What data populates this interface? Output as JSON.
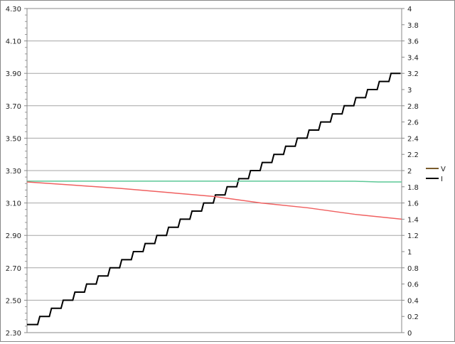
{
  "chart_data": {
    "type": "line",
    "title": "",
    "xlabel": "",
    "ylabel": "",
    "y_left": {
      "range": [
        2.3,
        4.3
      ],
      "ticks": [
        "2.30",
        "2.50",
        "2.70",
        "2.90",
        "3.10",
        "3.30",
        "3.50",
        "3.70",
        "3.90",
        "4.10",
        "4.30"
      ]
    },
    "y_right": {
      "range": [
        0,
        4
      ],
      "ticks": [
        "0",
        "0.2",
        "0.4",
        "0.6",
        "0.8",
        "1",
        "1.2",
        "1.4",
        "1.6",
        "1.8",
        "2",
        "2.2",
        "2.4",
        "2.6",
        "2.8",
        "3",
        "3.2",
        "3.4",
        "3.6",
        "3.8",
        "4"
      ]
    },
    "x_range": [
      0,
      32
    ],
    "grid": true,
    "legend_position": "right",
    "legend": [
      {
        "label": "V",
        "color": "#7a5c2e"
      },
      {
        "label": "I",
        "color": "#000000"
      }
    ],
    "series": [
      {
        "axis": "right",
        "color": "#000000",
        "style": "step",
        "x": [
          0,
          1,
          2,
          3,
          4,
          5,
          6,
          7,
          8,
          9,
          10,
          11,
          12,
          13,
          14,
          15,
          16,
          17,
          18,
          19,
          20,
          21,
          22,
          23,
          24,
          25,
          26,
          27,
          28,
          29,
          30,
          31
        ],
        "values": [
          0.1,
          0.2,
          0.3,
          0.4,
          0.5,
          0.6,
          0.7,
          0.8,
          0.9,
          1.0,
          1.1,
          1.2,
          1.3,
          1.4,
          1.5,
          1.6,
          1.7,
          1.8,
          1.9,
          2.0,
          2.1,
          2.2,
          2.3,
          2.4,
          2.5,
          2.6,
          2.7,
          2.8,
          2.9,
          3.0,
          3.1,
          3.2
        ]
      },
      {
        "axis": "left",
        "color": "#5cc896",
        "x": [
          0,
          8,
          16,
          22,
          24,
          28,
          30,
          32
        ],
        "values": [
          3.235,
          3.235,
          3.235,
          3.235,
          3.235,
          3.234,
          3.23,
          3.23
        ]
      },
      {
        "axis": "left",
        "color": "#f06060",
        "x": [
          0,
          4,
          8,
          12,
          16,
          20,
          24,
          28,
          32
        ],
        "values": [
          3.23,
          3.21,
          3.19,
          3.165,
          3.14,
          3.1,
          3.07,
          3.03,
          3.0
        ]
      }
    ]
  }
}
